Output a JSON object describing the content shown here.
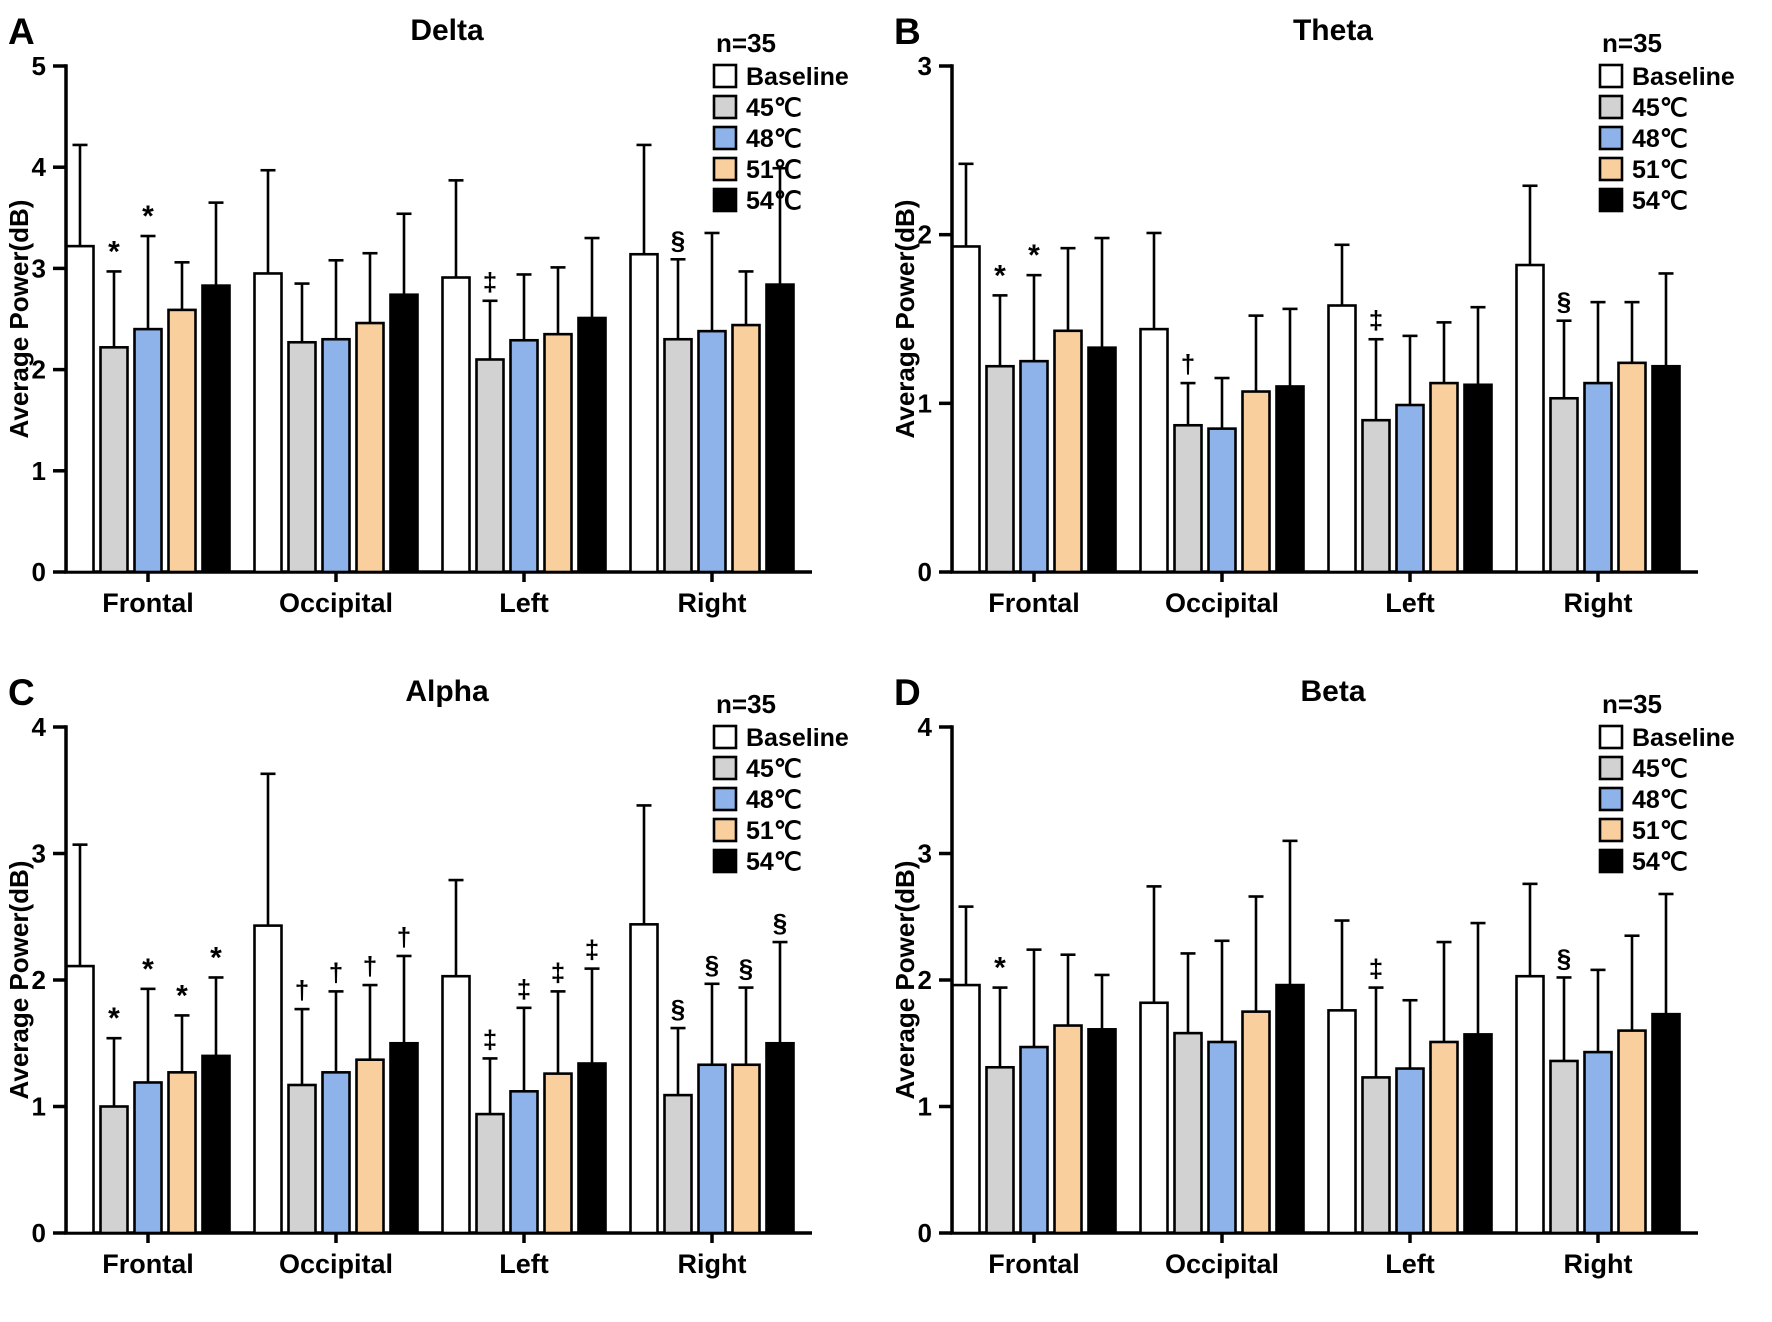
{
  "page": {
    "background": "#ffffff",
    "axis_color": "#000000",
    "text_color": "#000000"
  },
  "legend": {
    "n_label": "n=35",
    "entries": [
      {
        "label": "Baseline",
        "color": "#FFFFFF"
      },
      {
        "label": "45℃",
        "color": "#D2D2D2"
      },
      {
        "label": "48℃",
        "color": "#8DB3EA"
      },
      {
        "label": "51℃",
        "color": "#F9CF9E"
      },
      {
        "label": "54℃",
        "color": "#000000"
      }
    ]
  },
  "chart_data": [
    {
      "type": "bar",
      "panel_label": "A",
      "title": "Delta",
      "n_label": "n=35",
      "xlabel": "",
      "ylabel": "Average Power(dB)",
      "ylim": [
        0,
        5
      ],
      "yticks": [
        0,
        1,
        2,
        3,
        4,
        5
      ],
      "grid": false,
      "legend_position": "top-right",
      "categories": [
        "Frontal",
        "Occipital",
        "Left",
        "Right"
      ],
      "series": [
        {
          "name": "Baseline",
          "color": "#FFFFFF",
          "values": [
            3.22,
            2.95,
            2.91,
            3.14
          ],
          "errors": [
            1.0,
            1.02,
            0.96,
            1.08
          ]
        },
        {
          "name": "45℃",
          "color": "#D2D2D2",
          "values": [
            2.22,
            2.27,
            2.1,
            2.3
          ],
          "errors": [
            0.75,
            0.58,
            0.58,
            0.79
          ]
        },
        {
          "name": "48℃",
          "color": "#8DB3EA",
          "values": [
            2.4,
            2.3,
            2.29,
            2.38
          ],
          "errors": [
            0.92,
            0.78,
            0.65,
            0.97
          ]
        },
        {
          "name": "51℃",
          "color": "#F9CF9E",
          "values": [
            2.59,
            2.46,
            2.35,
            2.44
          ],
          "errors": [
            0.47,
            0.69,
            0.66,
            0.53
          ]
        },
        {
          "name": "54℃",
          "color": "#000000",
          "values": [
            2.83,
            2.74,
            2.51,
            2.84
          ],
          "errors": [
            0.82,
            0.8,
            0.79,
            1.15
          ]
        }
      ],
      "annotations": [
        {
          "category": "Frontal",
          "series": "45℃",
          "symbol": "*"
        },
        {
          "category": "Frontal",
          "series": "48℃",
          "symbol": "*"
        },
        {
          "category": "Left",
          "series": "45℃",
          "symbol": "‡"
        },
        {
          "category": "Right",
          "series": "45℃",
          "symbol": "§"
        }
      ]
    },
    {
      "type": "bar",
      "panel_label": "B",
      "title": "Theta",
      "n_label": "n=35",
      "xlabel": "",
      "ylabel": "Average Power(dB)",
      "ylim": [
        0,
        3
      ],
      "yticks": [
        0,
        1,
        2,
        3
      ],
      "grid": false,
      "legend_position": "top-right",
      "categories": [
        "Frontal",
        "Occipital",
        "Left",
        "Right"
      ],
      "series": [
        {
          "name": "Baseline",
          "color": "#FFFFFF",
          "values": [
            1.93,
            1.44,
            1.58,
            1.82
          ],
          "errors": [
            0.49,
            0.57,
            0.36,
            0.47
          ]
        },
        {
          "name": "45℃",
          "color": "#D2D2D2",
          "values": [
            1.22,
            0.87,
            0.9,
            1.03
          ],
          "errors": [
            0.42,
            0.25,
            0.48,
            0.46
          ]
        },
        {
          "name": "48℃",
          "color": "#8DB3EA",
          "values": [
            1.25,
            0.85,
            0.99,
            1.12
          ],
          "errors": [
            0.51,
            0.3,
            0.41,
            0.48
          ]
        },
        {
          "name": "51℃",
          "color": "#F9CF9E",
          "values": [
            1.43,
            1.07,
            1.12,
            1.24
          ],
          "errors": [
            0.49,
            0.45,
            0.36,
            0.36
          ]
        },
        {
          "name": "54℃",
          "color": "#000000",
          "values": [
            1.33,
            1.1,
            1.11,
            1.22
          ],
          "errors": [
            0.65,
            0.46,
            0.46,
            0.55
          ]
        }
      ],
      "annotations": [
        {
          "category": "Frontal",
          "series": "45℃",
          "symbol": "*"
        },
        {
          "category": "Frontal",
          "series": "48℃",
          "symbol": "*"
        },
        {
          "category": "Occipital",
          "series": "45℃",
          "symbol": "†"
        },
        {
          "category": "Left",
          "series": "45℃",
          "symbol": "‡"
        },
        {
          "category": "Right",
          "series": "45℃",
          "symbol": "§"
        }
      ]
    },
    {
      "type": "bar",
      "panel_label": "C",
      "title": "Alpha",
      "n_label": "n=35",
      "xlabel": "",
      "ylabel": "Average Power(dB)",
      "ylim": [
        0,
        4
      ],
      "yticks": [
        0,
        1,
        2,
        3,
        4
      ],
      "grid": false,
      "legend_position": "top-right",
      "categories": [
        "Frontal",
        "Occipital",
        "Left",
        "Right"
      ],
      "series": [
        {
          "name": "Baseline",
          "color": "#FFFFFF",
          "values": [
            2.11,
            2.43,
            2.03,
            2.44
          ],
          "errors": [
            0.96,
            1.2,
            0.76,
            0.94
          ]
        },
        {
          "name": "45℃",
          "color": "#D2D2D2",
          "values": [
            1.0,
            1.17,
            0.94,
            1.09
          ],
          "errors": [
            0.54,
            0.6,
            0.44,
            0.53
          ]
        },
        {
          "name": "48℃",
          "color": "#8DB3EA",
          "values": [
            1.19,
            1.27,
            1.12,
            1.33
          ],
          "errors": [
            0.74,
            0.64,
            0.66,
            0.64
          ]
        },
        {
          "name": "51℃",
          "color": "#F9CF9E",
          "values": [
            1.27,
            1.37,
            1.26,
            1.33
          ],
          "errors": [
            0.45,
            0.59,
            0.65,
            0.61
          ]
        },
        {
          "name": "54℃",
          "color": "#000000",
          "values": [
            1.4,
            1.5,
            1.34,
            1.5
          ],
          "errors": [
            0.62,
            0.69,
            0.75,
            0.8
          ]
        }
      ],
      "annotations": [
        {
          "category": "Frontal",
          "series": "45℃",
          "symbol": "*"
        },
        {
          "category": "Frontal",
          "series": "48℃",
          "symbol": "*"
        },
        {
          "category": "Frontal",
          "series": "51℃",
          "symbol": "*"
        },
        {
          "category": "Frontal",
          "series": "54℃",
          "symbol": "*"
        },
        {
          "category": "Occipital",
          "series": "45℃",
          "symbol": "†"
        },
        {
          "category": "Occipital",
          "series": "48℃",
          "symbol": "†"
        },
        {
          "category": "Occipital",
          "series": "51℃",
          "symbol": "†"
        },
        {
          "category": "Occipital",
          "series": "54℃",
          "symbol": "†"
        },
        {
          "category": "Left",
          "series": "45℃",
          "symbol": "‡"
        },
        {
          "category": "Left",
          "series": "48℃",
          "symbol": "‡"
        },
        {
          "category": "Left",
          "series": "51℃",
          "symbol": "‡"
        },
        {
          "category": "Left",
          "series": "54℃",
          "symbol": "‡"
        },
        {
          "category": "Right",
          "series": "45℃",
          "symbol": "§"
        },
        {
          "category": "Right",
          "series": "48℃",
          "symbol": "§"
        },
        {
          "category": "Right",
          "series": "51℃",
          "symbol": "§"
        },
        {
          "category": "Right",
          "series": "54℃",
          "symbol": "§"
        }
      ]
    },
    {
      "type": "bar",
      "panel_label": "D",
      "title": "Beta",
      "n_label": "n=35",
      "xlabel": "",
      "ylabel": "Average Power(dB)",
      "ylim": [
        0,
        4
      ],
      "yticks": [
        0,
        1,
        2,
        3,
        4
      ],
      "grid": false,
      "legend_position": "top-right",
      "categories": [
        "Frontal",
        "Occipital",
        "Left",
        "Right"
      ],
      "series": [
        {
          "name": "Baseline",
          "color": "#FFFFFF",
          "values": [
            1.96,
            1.82,
            1.76,
            2.03
          ],
          "errors": [
            0.62,
            0.92,
            0.71,
            0.73
          ]
        },
        {
          "name": "45℃",
          "color": "#D2D2D2",
          "values": [
            1.31,
            1.58,
            1.23,
            1.36
          ],
          "errors": [
            0.63,
            0.63,
            0.71,
            0.66
          ]
        },
        {
          "name": "48℃",
          "color": "#8DB3EA",
          "values": [
            1.47,
            1.51,
            1.3,
            1.43
          ],
          "errors": [
            0.77,
            0.8,
            0.54,
            0.65
          ]
        },
        {
          "name": "51℃",
          "color": "#F9CF9E",
          "values": [
            1.64,
            1.75,
            1.51,
            1.6
          ],
          "errors": [
            0.56,
            0.91,
            0.79,
            0.75
          ]
        },
        {
          "name": "54℃",
          "color": "#000000",
          "values": [
            1.61,
            1.96,
            1.57,
            1.73
          ],
          "errors": [
            0.43,
            1.14,
            0.88,
            0.95
          ]
        }
      ],
      "annotations": [
        {
          "category": "Frontal",
          "series": "45℃",
          "symbol": "*"
        },
        {
          "category": "Left",
          "series": "45℃",
          "symbol": "‡"
        },
        {
          "category": "Right",
          "series": "45℃",
          "symbol": "§"
        }
      ]
    }
  ]
}
